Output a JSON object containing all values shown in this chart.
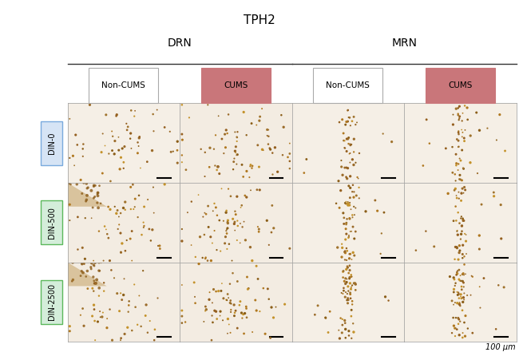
{
  "title": "TPH2",
  "title_fontsize": 11,
  "col_labels": [
    "Non-CUMS",
    "CUMS",
    "Non-CUMS",
    "CUMS"
  ],
  "col_label_bg": [
    "#ffffff",
    "#c9767a",
    "#ffffff",
    "#c9767a"
  ],
  "col_label_border": [
    "#aaaaaa",
    "#c9767a",
    "#aaaaaa",
    "#c9767a"
  ],
  "row_labels": [
    "DIN-0",
    "DIN-500",
    "DIN-2500"
  ],
  "row_label_bg": [
    "#d6e4f5",
    "#d4edda",
    "#d4edda"
  ],
  "row_label_border": [
    "#7aaadd",
    "#5cb85c",
    "#5cb85c"
  ],
  "group_labels": [
    "DRN",
    "MRN"
  ],
  "scale_bar_label": "100 μm",
  "figure_bg": "#ffffff",
  "panel_bg": "#f5ede0",
  "panel_bg_light": "#f8f2eb",
  "dot_color_dark": "#8B5A0A",
  "dot_color_mid": "#B8860B",
  "dot_color_light": "#C8A055"
}
